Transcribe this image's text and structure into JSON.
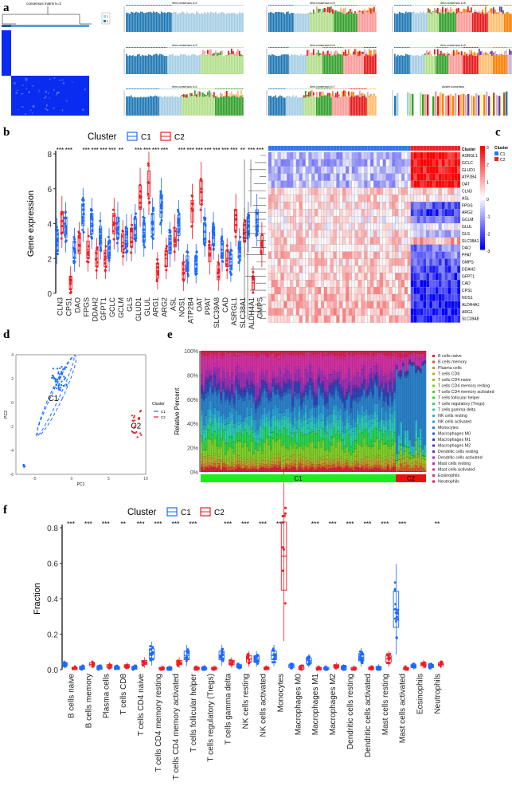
{
  "panel_labels": [
    "a",
    "b",
    "c",
    "d",
    "e",
    "f"
  ],
  "chart_data": [
    {
      "id": "a",
      "type": "heatmap",
      "title": "consensus matrix k=2",
      "legend": [
        "1",
        "2"
      ],
      "subplots": [
        "item-consensus k=2",
        "item-consensus k=3",
        "item-consensus k=4",
        "item-consensus k=5",
        "item-consensus k=6",
        "item-consensus k=7",
        "item-consensus k=8",
        "item-consensus k=9",
        "cluster-consensus"
      ],
      "colors": [
        "#1f78b4",
        "#a6cee3",
        "#b2df8a",
        "#33a02c",
        "#fb9a99",
        "#e31a1c",
        "#fdbf6f",
        "#ff7f00",
        "#cab2d6",
        "#6a3d9a",
        "#ffff99",
        "#b15928"
      ]
    },
    {
      "id": "b",
      "type": "box",
      "legend_title": "Cluster",
      "legend": [
        "C1",
        "C2"
      ],
      "colors": [
        "#1a6aff",
        "#ee1c24"
      ],
      "ylabel": "Gene expression",
      "ylim": [
        0,
        8
      ],
      "yticks": [
        "0",
        "2",
        "4",
        "6",
        "8"
      ],
      "categories": [
        "CLN3",
        "CPS1",
        "DAO",
        "FPGS",
        "DDAH2",
        "GFPT1",
        "GCLC",
        "GCLM",
        "GLS",
        "GLUD1",
        "GLUL",
        "ARG1",
        "ARG2",
        "ASL",
        "NOS1",
        "ATP2B4",
        "OAT",
        "PPAT",
        "SLC39A8",
        "CAD",
        "ASRGL1",
        "SLC38A1",
        "ALDH4A1",
        "GMPS"
      ],
      "significance": [
        "***",
        "***",
        "",
        "***",
        "***",
        "***",
        "***",
        "**",
        "",
        "***",
        "***",
        "***",
        "***",
        "",
        "***",
        "***",
        "***",
        "***",
        "***",
        "***",
        "***",
        "**",
        "***",
        "***"
      ],
      "series": [
        {
          "name": "C1",
          "medians": [
            3.0,
            3.8,
            2.5,
            4.5,
            4.0,
            3.3,
            2.5,
            3.8,
            3.2,
            3.7,
            3.5,
            4.0,
            5.0,
            2.8,
            3.9,
            1.7,
            1.7,
            3.5,
            3.3,
            2.5,
            1.8,
            2.5,
            3.8,
            4.2
          ]
        },
        {
          "name": "C2",
          "medians": [
            4.1,
            0.6,
            2.8,
            2.5,
            2.0,
            2.0,
            4.0,
            2.9,
            3.2,
            5.5,
            6.3,
            1.3,
            2.0,
            3.2,
            1.2,
            4.7,
            5.8,
            2.3,
            1.2,
            2.0,
            4.2,
            3.5,
            0.6,
            2.8
          ]
        }
      ]
    },
    {
      "id": "c",
      "type": "heatmap",
      "annotation_label": "Cluster",
      "legend_title": "Cluster",
      "legend": [
        "C1",
        "C2"
      ],
      "scale": [
        "3",
        "2",
        "1",
        "0",
        "-1",
        "-2",
        "-3"
      ],
      "rows": [
        "ASRGL1",
        "GCLC",
        "GLUD1",
        "ATP2B4",
        "OAT",
        "CLN3",
        "ASL",
        "FPGS",
        "ARG2",
        "GCLM",
        "GLUL",
        "GLS",
        "SLC38A1",
        "DAO",
        "PPAT",
        "GMPS",
        "DDAH2",
        "GFPT1",
        "CAD",
        "CPS1",
        "NOS1",
        "ALDH4A1",
        "ARG1",
        "SLC39A8"
      ],
      "row_pattern_c1": [
        -0.8,
        -0.8,
        -0.8,
        -0.8,
        -0.8,
        0.6,
        0.4,
        0.5,
        0.4,
        0.2,
        0.3,
        0.4,
        0.5,
        0.3,
        0.6,
        0.5,
        0.5,
        0.6,
        0.7,
        0.8,
        0.8,
        0.8,
        0.8,
        0.8
      ],
      "row_pattern_c2": [
        2.8,
        2.8,
        2.8,
        2.8,
        2.8,
        0.4,
        0.3,
        -2,
        -2.2,
        -1.5,
        -0.3,
        -0.8,
        1.0,
        -1.5,
        -1.5,
        -2,
        -2,
        -2.3,
        -2.5,
        -2.6,
        -2.6,
        -2.6,
        -2.7,
        -2.6
      ]
    },
    {
      "id": "d",
      "type": "scatter",
      "xlabel": "PC1",
      "ylabel": "PC2",
      "xticks": [
        "-5",
        "0",
        "5",
        "10"
      ],
      "yticks": [
        "4",
        "2",
        "0",
        "-2",
        "-4",
        "-6"
      ],
      "xlim": [
        -7.5,
        10
      ],
      "ylim": [
        -6,
        4
      ],
      "legend_title": "Cluster",
      "legend": [
        "C1",
        "C2"
      ],
      "cluster_labels": [
        "C1",
        "C2"
      ],
      "centers": [
        {
          "x": -1.6,
          "y": 2.0
        },
        {
          "x": 8.8,
          "y": -1.9
        }
      ]
    },
    {
      "id": "e",
      "type": "bar",
      "stacked": true,
      "ylabel": "Relative Percent",
      "yticks": [
        "100%",
        "80%",
        "60%",
        "40%",
        "20%",
        "0%"
      ],
      "group_labels": [
        "C1",
        "C2"
      ],
      "group_colors": [
        "#1aee1a",
        "#ee1010"
      ],
      "legend": [
        "B cells naive",
        "B cells memory",
        "Plasma cells",
        "T cells CD8",
        "T cells CD4 naive",
        "T cells CD4 memory resting",
        "T cells CD4 memory activated",
        "T cells follicular helper",
        "T cells regulatory (Tregs)",
        "T cells gamma delta",
        "NK cells resting",
        "NK cells activated",
        "Monocytes",
        "Macrophages M0",
        "Macrophages M1",
        "Macrophages M2",
        "Dendritic cells resting",
        "Dendritic cells activated",
        "Mast cells resting",
        "Mast cells activated",
        "Eosinophils",
        "Neutrophils"
      ],
      "legend_colors": [
        "#d8203a",
        "#d45a2a",
        "#cc8b2a",
        "#b8a82a",
        "#9cbf2a",
        "#7fcc2a",
        "#5ad02a",
        "#2ad04a",
        "#2ad07a",
        "#2accaa",
        "#2ab8c8",
        "#2a9ed0",
        "#2a80c8",
        "#2a62c0",
        "#2a45b8",
        "#4a32b0",
        "#7030b0",
        "#9a30b0",
        "#c030b0",
        "#d030a0",
        "#d83080",
        "#d82050"
      ],
      "mean_fraction_c1": [
        0.03,
        0.02,
        0.02,
        0.03,
        0.02,
        0.1,
        0.01,
        0.08,
        0.01,
        0.08,
        0.04,
        0.06,
        0.12,
        0.03,
        0.05,
        0.02,
        0.02,
        0.08,
        0.03,
        0.12,
        0.02,
        0.03
      ],
      "mean_fraction_c2": [
        0.005,
        0.03,
        0.02,
        0.03,
        0.04,
        0.005,
        0.04,
        0.005,
        0.005,
        0.04,
        0.07,
        0.005,
        0.62,
        0.01,
        0.005,
        0.02,
        0.005,
        0.005,
        0.06,
        0.005,
        0.03,
        0.03
      ],
      "n_samples": [
        90,
        14
      ]
    },
    {
      "id": "f",
      "type": "box",
      "legend_title": "Cluster",
      "legend": [
        "C1",
        "C2"
      ],
      "colors": [
        "#1a6aff",
        "#ee1c24"
      ],
      "ylabel": "Fraction",
      "ylim": [
        0,
        0.8
      ],
      "yticks": [
        "0.0",
        "0.2",
        "0.4",
        "0.6",
        "0.8"
      ],
      "categories": [
        "B cells naive",
        "B cells memory",
        "Plasma cells",
        "T cells CD8",
        "T cells CD4 naive",
        "T cells CD4 memory resting",
        "T cells CD4 memory activated",
        "T cells follicular helper",
        "T cells regulatory (Tregs)",
        "T cells gamma delta",
        "NK cells resting",
        "NK cells activated",
        "Monocytes",
        "Macrophages M0",
        "Macrophages M1",
        "Macrophages M2",
        "Dendritic cells resting",
        "Dendritic cells activated",
        "Mast cells resting",
        "Mast cells activated",
        "Eosinophils",
        "Neutrophils"
      ],
      "significance": [
        "***",
        "***",
        "***",
        "**",
        "***",
        "***",
        "***",
        "***",
        "",
        "***",
        "***",
        "***",
        "***",
        "",
        "***",
        "***",
        "***",
        "***",
        "***",
        "***",
        "",
        "**"
      ],
      "series": [
        {
          "name": "C1",
          "medians": [
            0.03,
            0.01,
            0.01,
            0.01,
            0.01,
            0.09,
            0.005,
            0.08,
            0.005,
            0.08,
            0.02,
            0.06,
            0.08,
            0.02,
            0.05,
            0.005,
            0.01,
            0.07,
            0.01,
            0.34,
            0.02,
            0.02
          ]
        },
        {
          "name": "C2",
          "medians": [
            0.005,
            0.03,
            0.02,
            0.02,
            0.04,
            0.005,
            0.04,
            0.005,
            0.005,
            0.04,
            0.06,
            0.005,
            0.64,
            0.01,
            0.005,
            0.02,
            0.005,
            0.005,
            0.06,
            0.005,
            0.03,
            0.03
          ]
        }
      ]
    }
  ]
}
